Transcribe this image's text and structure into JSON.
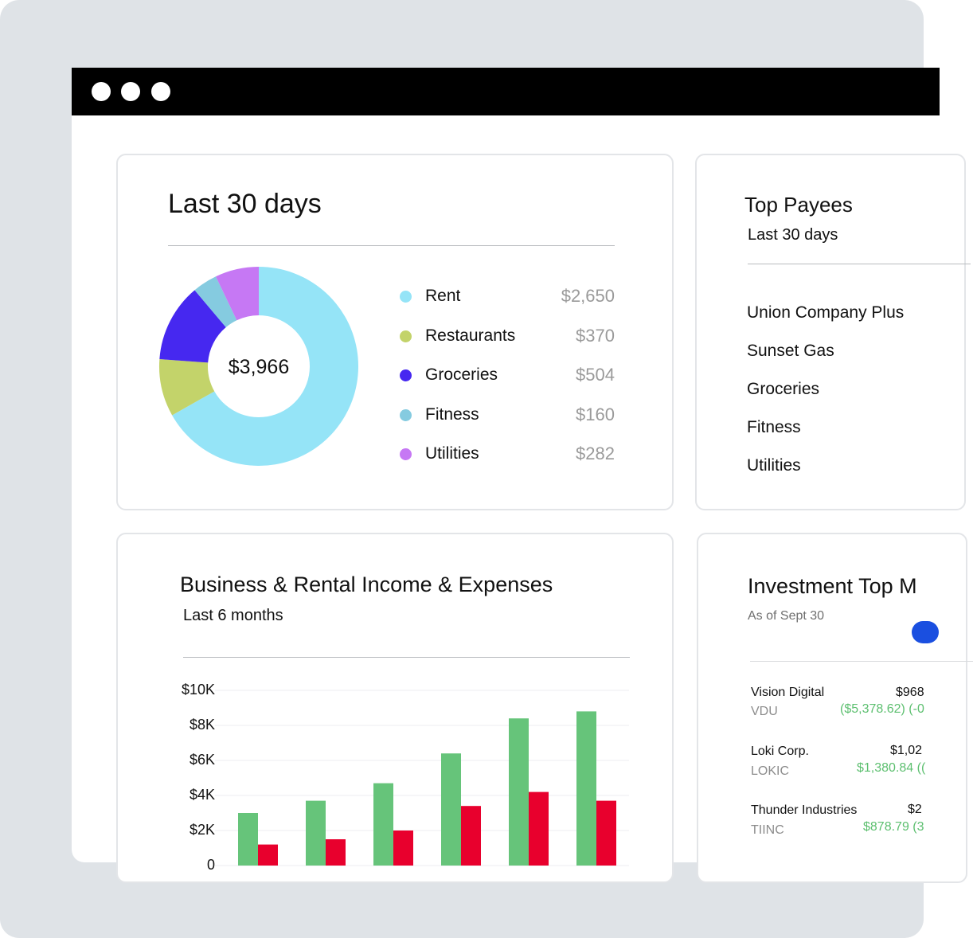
{
  "spending": {
    "title": "Last 30 days",
    "total": "$3,966",
    "categories": [
      {
        "label": "Rent",
        "value": "$2,650",
        "amount": 2650,
        "color": "#95e4f7"
      },
      {
        "label": "Restaurants",
        "value": "$370",
        "amount": 370,
        "color": "#c3d36a"
      },
      {
        "label": "Groceries",
        "value": "$504",
        "amount": 504,
        "color": "#4628f0"
      },
      {
        "label": "Fitness",
        "value": "$160",
        "amount": 160,
        "color": "#85cbe0"
      },
      {
        "label": "Utilities",
        "value": "$282",
        "amount": 282,
        "color": "#c678f4"
      }
    ]
  },
  "payees": {
    "title": "Top Payees",
    "subtitle": "Last 30 days",
    "items": [
      "Union Company Plus",
      "Sunset Gas",
      "Groceries",
      "Fitness",
      "Utilities"
    ]
  },
  "business": {
    "title": "Business & Rental Income & Expenses",
    "subtitle": "Last 6 months"
  },
  "chart_data": {
    "type": "bar",
    "title": "Business & Rental Income & Expenses",
    "ylim": [
      0,
      10000
    ],
    "y_ticks": [
      "$10K",
      "$8K",
      "$6K",
      "$4K",
      "$2K",
      "0"
    ],
    "grid": true,
    "categories": [
      "",
      "",
      "",
      "",
      "",
      ""
    ],
    "series": [
      {
        "values": [
          3000,
          3700,
          4700,
          6400,
          8400,
          8800
        ],
        "color": "#66c47a"
      },
      {
        "values": [
          1200,
          1500,
          2000,
          3400,
          4200,
          3700
        ],
        "color": "#e8002d"
      }
    ]
  },
  "investments": {
    "title": "Investment Top M",
    "subtitle": "As of Sept 30",
    "items": [
      {
        "name": "Vision Digital",
        "ticker": "VDU",
        "price": "$968",
        "change": "($5,378.62) (-0"
      },
      {
        "name": "Loki Corp.",
        "ticker": "LOKIC",
        "price": "$1,02",
        "change": "$1,380.84 (("
      },
      {
        "name": "Thunder Industries",
        "ticker": "TIINC",
        "price": "$2",
        "change": "$878.79 (3"
      }
    ]
  },
  "colors": {
    "window_bar": "#000000",
    "backdrop": "#dfe3e7",
    "toggle": "#1a4fe0"
  }
}
